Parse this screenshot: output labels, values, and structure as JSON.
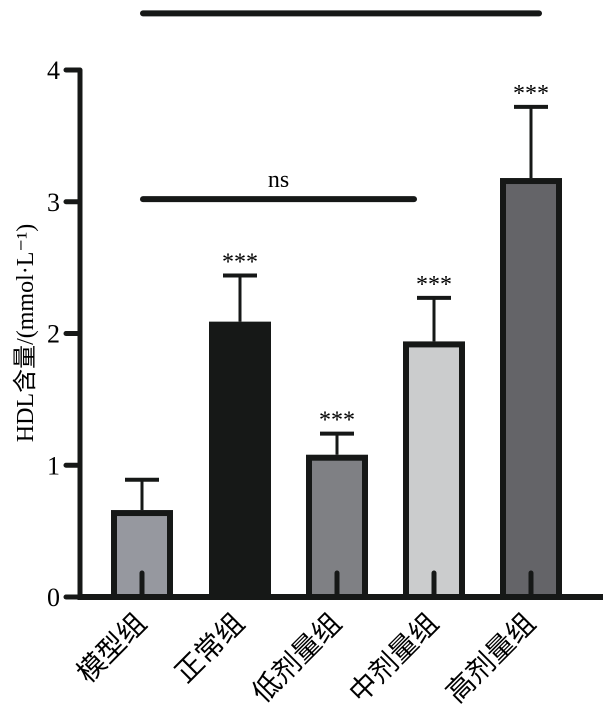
{
  "chart_data": {
    "type": "bar",
    "title": "",
    "xlabel": "",
    "ylabel": "HDL含量/(mmol·L⁻¹)",
    "ylim": [
      0,
      4
    ],
    "yticks": [
      "0",
      "1",
      "2",
      "3",
      "4"
    ],
    "categories": [
      "模型组",
      "正常组",
      "低剂量组",
      "中剂量组",
      "高剂量组"
    ],
    "values": [
      0.66,
      2.09,
      1.08,
      1.94,
      3.18
    ],
    "error": [
      0.23,
      0.35,
      0.16,
      0.33,
      0.54
    ],
    "colors": [
      "#96989f",
      "#161817",
      "#7f8084",
      "#cbcccd",
      "#646468"
    ],
    "bar_labels": [
      "",
      "***",
      "***",
      "***",
      "***"
    ],
    "comparisons": [
      {
        "from": 0,
        "to": 4,
        "label": "***",
        "y": 4.43
      },
      {
        "from": 0,
        "to": 3,
        "label": "ns",
        "y": 3.02
      }
    ]
  }
}
